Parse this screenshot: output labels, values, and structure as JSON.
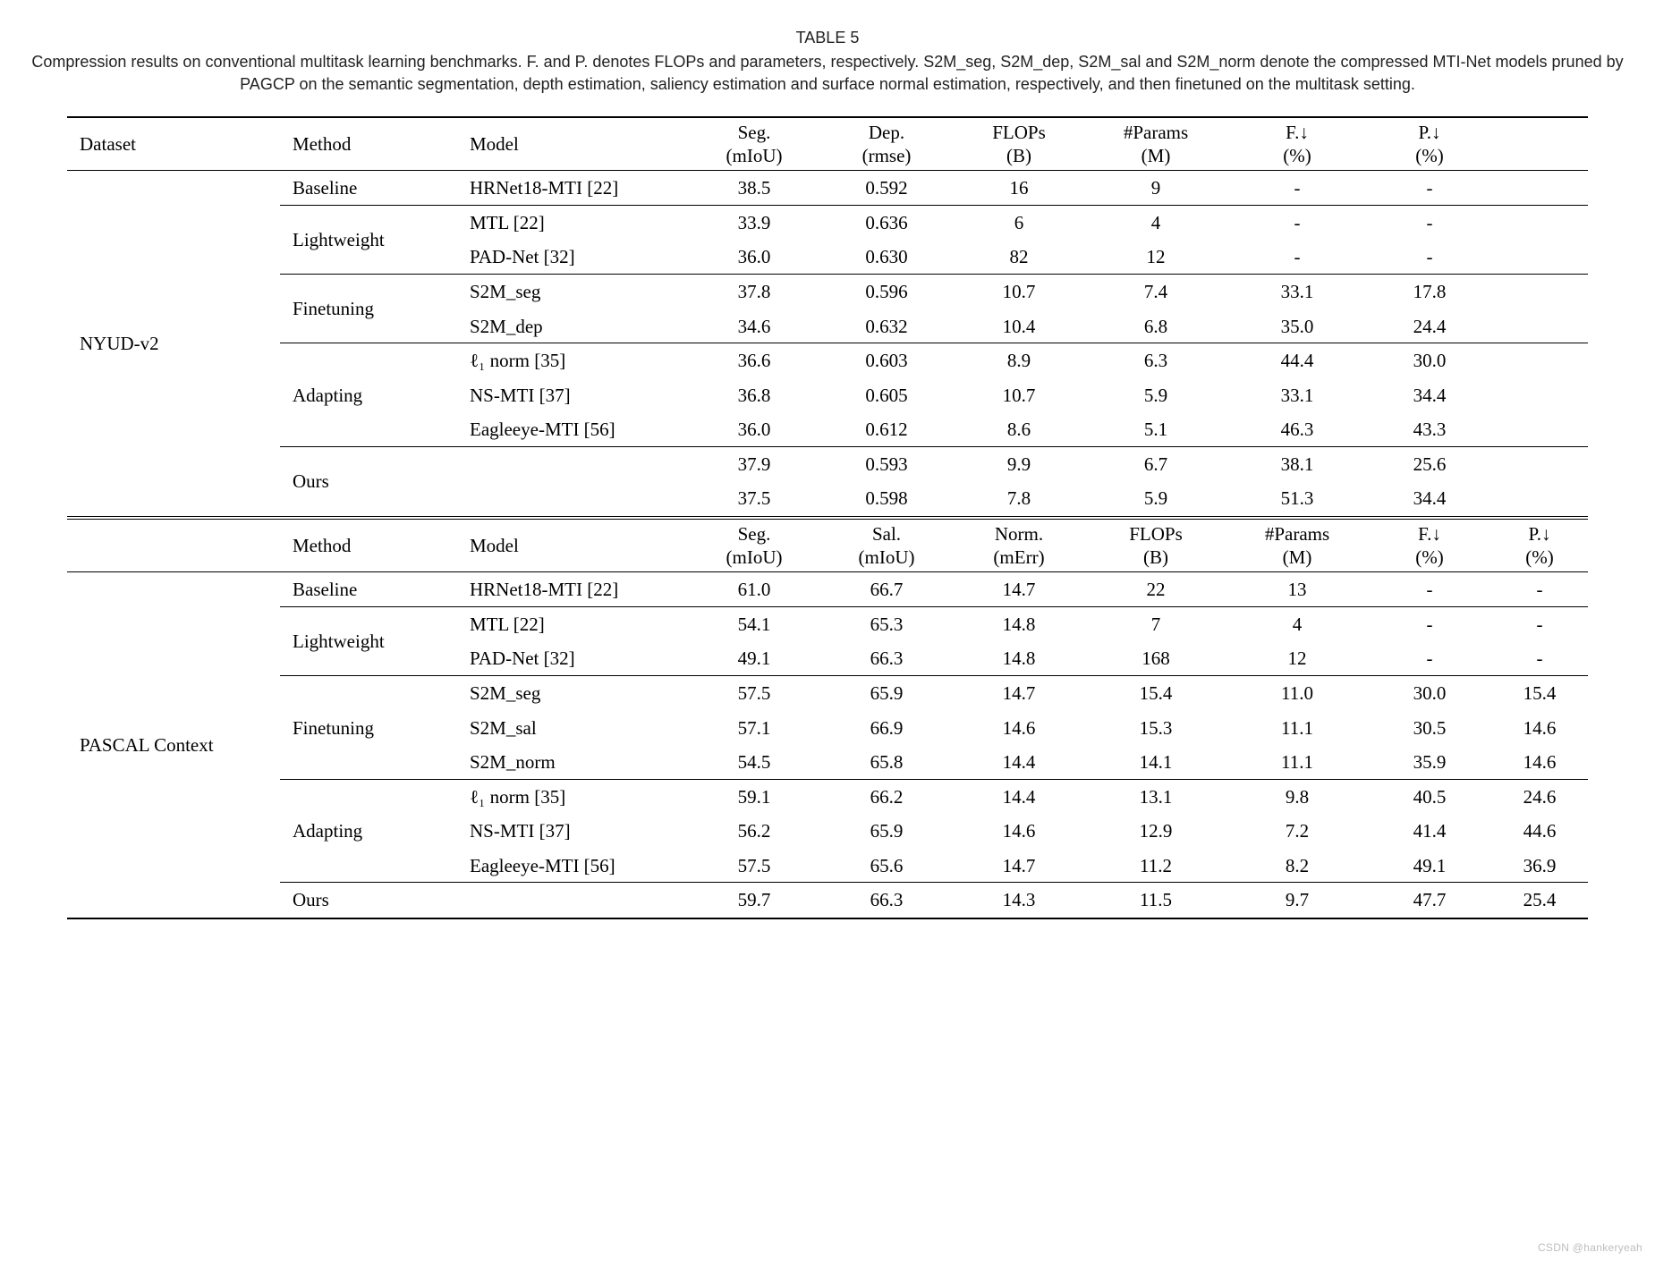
{
  "caption": {
    "label": "TABLE 5",
    "text": "Compression results on conventional multitask learning benchmarks. F. and P. denotes FLOPs and parameters, respectively. S2M_seg, S2M_dep, S2M_sal and S2M_norm denote the compressed MTI-Net models pruned by PAGCP on the semantic segmentation, depth estimation, saliency estimation and surface normal estimation, respectively, and then finetuned on the multitask setting."
  },
  "watermark": "CSDN @hankeryeah",
  "sectionA": {
    "headers": {
      "dataset": "Dataset",
      "method": "Method",
      "model": "Model",
      "c": [
        {
          "top": "Seg.",
          "sub": "(mIoU)"
        },
        {
          "top": "Dep.",
          "sub": "(rmse)"
        },
        {
          "top": "FLOPs",
          "sub": "(B)"
        },
        {
          "top": "#Params",
          "sub": "(M)"
        },
        {
          "top": "F.↓",
          "sub": "(%)"
        },
        {
          "top": "P.↓",
          "sub": "(%)"
        }
      ]
    },
    "dataset": "NYUD-v2",
    "groups": [
      {
        "method": "Baseline",
        "rows": [
          {
            "model": "HRNet18-MTI [22]",
            "v": [
              "38.5",
              "0.592",
              "16",
              "9",
              "-",
              "-"
            ]
          }
        ]
      },
      {
        "method": "Lightweight",
        "rows": [
          {
            "model": "MTL [22]",
            "v": [
              "33.9",
              "0.636",
              "6",
              "4",
              "-",
              "-"
            ]
          },
          {
            "model": "PAD-Net [32]",
            "v": [
              "36.0",
              "0.630",
              "82",
              "12",
              "-",
              "-"
            ]
          }
        ]
      },
      {
        "method": "Finetuning",
        "rows": [
          {
            "model": "S2M_seg",
            "v": [
              "37.8",
              "0.596",
              "10.7",
              "7.4",
              "33.1",
              "17.8"
            ]
          },
          {
            "model": "S2M_dep",
            "v": [
              "34.6",
              "0.632",
              "10.4",
              "6.8",
              "35.0",
              "24.4"
            ]
          }
        ]
      },
      {
        "method": "Adapting",
        "rows": [
          {
            "model": "ℓ₁ norm [35]",
            "v": [
              "36.6",
              "0.603",
              "8.9",
              "6.3",
              "44.4",
              "30.0"
            ]
          },
          {
            "model": "NS-MTI [37]",
            "v": [
              "36.8",
              "0.605",
              "10.7",
              "5.9",
              "33.1",
              "34.4"
            ]
          },
          {
            "model": "Eagleeye-MTI [56]",
            "v": [
              "36.0",
              "0.612",
              "8.6",
              "5.1",
              "46.3",
              "43.3"
            ]
          }
        ]
      },
      {
        "method": "Ours",
        "bold": true,
        "model_bold": false,
        "rows": [
          {
            "model": "",
            "v": [
              "37.9",
              "0.593",
              "9.9",
              "6.7",
              "38.1",
              "25.6"
            ]
          },
          {
            "model": "",
            "v": [
              "37.5",
              "0.598",
              "7.8",
              "5.9",
              "51.3",
              "34.4"
            ]
          }
        ]
      }
    ]
  },
  "sectionB": {
    "headers": {
      "method": "Method",
      "model": "Model",
      "c": [
        {
          "top": "Seg.",
          "sub": "(mIoU)"
        },
        {
          "top": "Sal.",
          "sub": "(mIoU)"
        },
        {
          "top": "Norm.",
          "sub": "(mErr)"
        },
        {
          "top": "FLOPs",
          "sub": "(B)"
        },
        {
          "top": "#Params",
          "sub": "(M)"
        },
        {
          "top": "F.↓",
          "sub": "(%)"
        },
        {
          "top": "P.↓",
          "sub": "(%)"
        }
      ]
    },
    "dataset": "PASCAL Context",
    "groups": [
      {
        "method": "Baseline",
        "rows": [
          {
            "model": "HRNet18-MTI [22]",
            "v": [
              "61.0",
              "66.7",
              "14.7",
              "22",
              "13",
              "-",
              "-"
            ]
          }
        ]
      },
      {
        "method": "Lightweight",
        "rows": [
          {
            "model": "MTL [22]",
            "v": [
              "54.1",
              "65.3",
              "14.8",
              "7",
              "4",
              "-",
              "-"
            ]
          },
          {
            "model": "PAD-Net [32]",
            "v": [
              "49.1",
              "66.3",
              "14.8",
              "168",
              "12",
              "-",
              "-"
            ]
          }
        ]
      },
      {
        "method": "Finetuning",
        "rows": [
          {
            "model": "S2M_seg",
            "v": [
              "57.5",
              "65.9",
              "14.7",
              "15.4",
              "11.0",
              "30.0",
              "15.4"
            ]
          },
          {
            "model": "S2M_sal",
            "v": [
              "57.1",
              "66.9",
              "14.6",
              "15.3",
              "11.1",
              "30.5",
              "14.6"
            ]
          },
          {
            "model": "S2M_norm",
            "v": [
              "54.5",
              "65.8",
              "14.4",
              "14.1",
              "11.1",
              "35.9",
              "14.6"
            ]
          }
        ]
      },
      {
        "method": "Adapting",
        "rows": [
          {
            "model": "ℓ₁ norm [35]",
            "v": [
              "59.1",
              "66.2",
              "14.4",
              "13.1",
              "9.8",
              "40.5",
              "24.6"
            ]
          },
          {
            "model": "NS-MTI [37]",
            "v": [
              "56.2",
              "65.9",
              "14.6",
              "12.9",
              "7.2",
              "41.4",
              "44.6"
            ]
          },
          {
            "model": "Eagleeye-MTI [56]",
            "v": [
              "57.5",
              "65.6",
              "14.7",
              "11.2",
              "8.2",
              "49.1",
              "36.9"
            ]
          }
        ]
      },
      {
        "method": "Ours",
        "bold": true,
        "model_bold": false,
        "rows": [
          {
            "model": "",
            "v": [
              "59.7",
              "66.3",
              "14.3",
              "11.5",
              "9.7",
              "47.7",
              "25.4"
            ]
          }
        ]
      }
    ]
  },
  "style": {
    "col_widths_A": [
      210,
      170,
      230,
      120,
      120,
      120,
      130,
      110,
      110,
      80
    ],
    "col_widths_B": [
      210,
      170,
      230,
      110,
      110,
      110,
      110,
      130,
      90,
      80
    ]
  }
}
